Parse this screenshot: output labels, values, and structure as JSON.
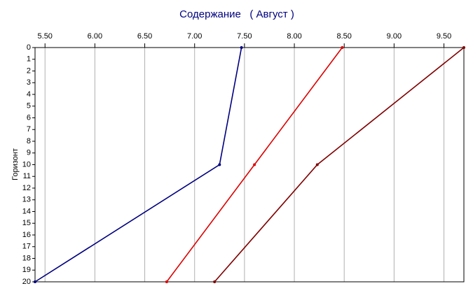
{
  "chart_data": {
    "type": "line",
    "title": "Содержание   ( Август )",
    "y_label": "Горизонт",
    "depth": [
      0,
      10,
      20
    ],
    "series": [
      {
        "color": "#000080",
        "values": [
          7.47,
          7.25,
          5.4
        ]
      },
      {
        "color": "#dd0000",
        "values": [
          8.48,
          7.6,
          6.72
        ]
      },
      {
        "color": "#800000",
        "values": [
          9.7,
          8.23,
          7.2
        ]
      }
    ],
    "xlim": [
      5.4,
      9.7
    ],
    "xticks": [
      {
        "value": 5.5,
        "label": "5.50"
      },
      {
        "value": 6,
        "label": "6.00"
      },
      {
        "value": 6.5,
        "label": "6.50"
      },
      {
        "value": 7,
        "label": "7.00"
      },
      {
        "value": 7.5,
        "label": "7.50"
      },
      {
        "value": 8,
        "label": "8.00"
      },
      {
        "value": 8.5,
        "label": "8.50"
      },
      {
        "value": 9,
        "label": "9.00"
      },
      {
        "value": 9.5,
        "label": "9.50"
      }
    ],
    "ylim": [
      0,
      20
    ],
    "yticks": [
      0,
      1,
      2,
      3,
      4,
      5,
      6,
      7,
      8,
      9,
      10,
      11,
      12,
      13,
      14,
      15,
      16,
      17,
      18,
      19,
      20
    ],
    "y_inverted": true,
    "x_axis_position": "top",
    "grid": "x"
  }
}
